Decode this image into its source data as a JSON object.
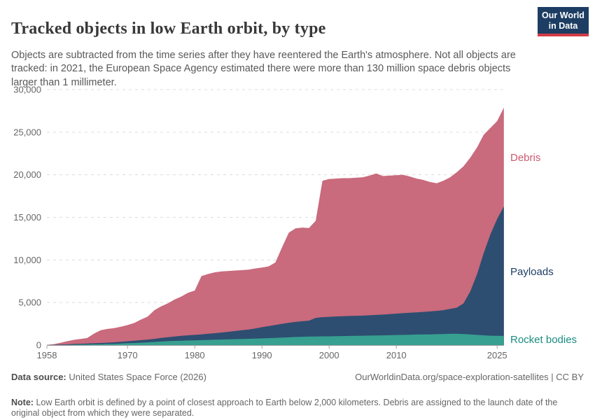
{
  "header": {
    "title": "Tracked objects in low Earth orbit, by type",
    "subtitle": "Objects are subtracted from the time series after they have reentered the Earth's atmosphere. Not all objects are tracked: in 2021, the European Space Agency estimated there were more than 130 million space debris objects larger than 1 millimeter.",
    "logo": {
      "line1": "Our World",
      "line2": "in Data"
    },
    "logo_colors": {
      "background": "#1d3d63",
      "bar": "#d23c46"
    }
  },
  "chart_data": {
    "type": "area",
    "stacked": true,
    "title": "Tracked objects in low Earth orbit, by type",
    "xlabel": "",
    "ylabel": "",
    "xlim": [
      1958,
      2026
    ],
    "ylim": [
      0,
      30000
    ],
    "xticks": [
      1958,
      1970,
      1980,
      1990,
      2000,
      2010,
      2025
    ],
    "yticks": [
      0,
      5000,
      10000,
      15000,
      20000,
      25000,
      30000
    ],
    "grid": "horizontal-dashed",
    "legend_position": "right-edge-labels",
    "x": [
      1958,
      1959,
      1960,
      1961,
      1962,
      1963,
      1964,
      1965,
      1966,
      1967,
      1968,
      1969,
      1970,
      1971,
      1972,
      1973,
      1974,
      1975,
      1976,
      1977,
      1978,
      1979,
      1980,
      1981,
      1982,
      1983,
      1984,
      1985,
      1986,
      1987,
      1988,
      1989,
      1990,
      1991,
      1992,
      1993,
      1994,
      1995,
      1996,
      1997,
      1998,
      1999,
      2000,
      2001,
      2002,
      2003,
      2004,
      2005,
      2006,
      2007,
      2008,
      2009,
      2010,
      2011,
      2012,
      2013,
      2014,
      2015,
      2016,
      2017,
      2018,
      2019,
      2020,
      2021,
      2022,
      2023,
      2024,
      2025,
      2026
    ],
    "series": [
      {
        "name": "Rocket bodies",
        "color": "#37a091",
        "label_color": "#1b8c82",
        "values": [
          2,
          5,
          10,
          15,
          40,
          55,
          70,
          90,
          110,
          130,
          150,
          185,
          220,
          250,
          290,
          330,
          370,
          420,
          460,
          490,
          520,
          540,
          560,
          580,
          610,
          630,
          650,
          680,
          700,
          720,
          740,
          765,
          790,
          820,
          850,
          880,
          910,
          950,
          980,
          1000,
          1015,
          1025,
          1030,
          1045,
          1060,
          1075,
          1090,
          1100,
          1115,
          1130,
          1145,
          1160,
          1180,
          1200,
          1220,
          1240,
          1255,
          1260,
          1280,
          1300,
          1320,
          1330,
          1300,
          1250,
          1200,
          1150,
          1100,
          1090,
          1080
        ]
      },
      {
        "name": "Payloads",
        "color": "#2d4e70",
        "label_color": "#1d3d63",
        "values": [
          8,
          30,
          45,
          65,
          90,
          105,
          115,
          120,
          140,
          160,
          180,
          205,
          230,
          260,
          290,
          320,
          360,
          430,
          470,
          520,
          570,
          610,
          640,
          680,
          720,
          770,
          830,
          880,
          950,
          1020,
          1090,
          1195,
          1310,
          1410,
          1510,
          1620,
          1710,
          1770,
          1820,
          1870,
          2185,
          2255,
          2290,
          2315,
          2330,
          2345,
          2350,
          2360,
          2385,
          2410,
          2435,
          2480,
          2520,
          2550,
          2580,
          2610,
          2645,
          2690,
          2740,
          2800,
          2930,
          3070,
          3600,
          5050,
          7100,
          9650,
          11900,
          13710,
          15220
        ]
      },
      {
        "name": "Debris",
        "color": "#c96a7d",
        "label_color": "#ca5a70",
        "values": [
          10,
          65,
          205,
          370,
          490,
          560,
          645,
          1140,
          1500,
          1610,
          1660,
          1760,
          1900,
          2090,
          2420,
          2700,
          3370,
          3700,
          3970,
          4340,
          4610,
          5000,
          5200,
          6840,
          7020,
          7150,
          7170,
          7140,
          7100,
          7060,
          7020,
          7040,
          7000,
          7020,
          7340,
          9000,
          10580,
          10980,
          11000,
          10880,
          11400,
          16020,
          16180,
          16190,
          16210,
          16180,
          16210,
          16240,
          16400,
          16610,
          16270,
          16260,
          16250,
          16250,
          16000,
          15700,
          15500,
          15200,
          14980,
          15200,
          15450,
          15900,
          16100,
          15700,
          14900,
          13900,
          12500,
          11500,
          11600
        ]
      }
    ]
  },
  "footer": {
    "data_source_label": "Data source:",
    "data_source": "United States Space Force (2026)",
    "attribution": "OurWorldinData.org/space-exploration-satellites | CC BY",
    "note_label": "Note:",
    "note": "Low Earth orbit is defined by a point of closest approach to Earth below 2,000 kilometers. Debris are assigned to the launch date of the original object from which they were separated."
  }
}
